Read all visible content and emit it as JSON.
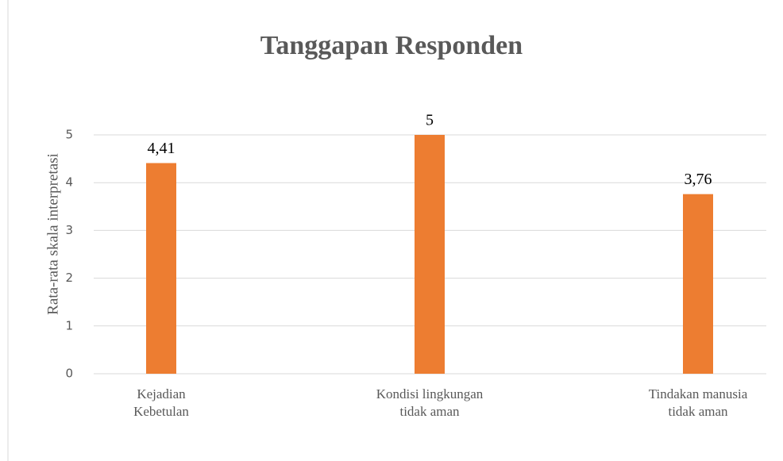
{
  "chart_data": {
    "type": "bar",
    "title": "Tanggapan Responden",
    "y_axis_label": "Rata-rata skala interpretasi",
    "categories": [
      "Kejadian Kebetulan",
      "Kondisi lingkungan tidak aman",
      "Tindakan manusia tidak aman"
    ],
    "values": [
      4.41,
      5,
      3.76
    ],
    "value_labels": [
      "4,41",
      "5",
      "3,76"
    ],
    "color": "#ed7d31",
    "ylim": [
      0,
      5
    ],
    "yticks": [
      0,
      1,
      2,
      3,
      4,
      5
    ],
    "grid": true
  }
}
